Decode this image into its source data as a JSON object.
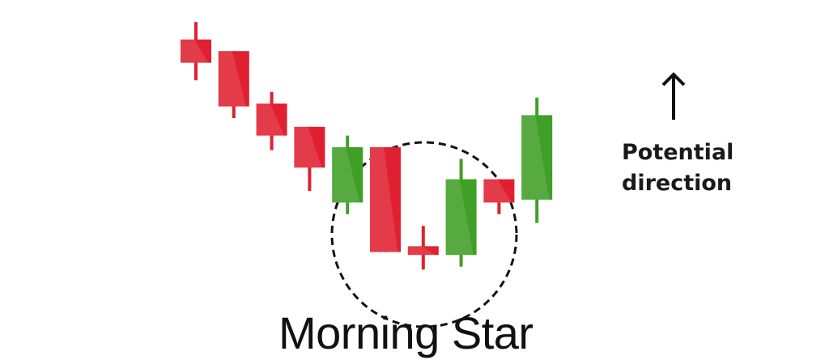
{
  "chart_data": {
    "type": "candlestick",
    "title": "Morning Star",
    "annotation": [
      "Potential",
      "direction"
    ],
    "annotation_icon": "up-arrow-icon",
    "highlight": "dashed-circle",
    "ylim": [
      0,
      100
    ],
    "candles": [
      {
        "open": 92,
        "close": 84,
        "high": 98,
        "low": 78
      },
      {
        "open": 88,
        "close": 69,
        "high": 88,
        "low": 65
      },
      {
        "open": 70,
        "close": 59,
        "high": 74,
        "low": 54
      },
      {
        "open": 62,
        "close": 48,
        "high": 62,
        "low": 40
      },
      {
        "open": 36,
        "close": 55,
        "high": 59,
        "low": 32
      },
      {
        "open": 55,
        "close": 19,
        "high": 55,
        "low": 19
      },
      {
        "open": 21,
        "close": 18,
        "high": 28,
        "low": 13
      },
      {
        "open": 18,
        "close": 44,
        "high": 51,
        "low": 14
      },
      {
        "open": 44,
        "close": 36,
        "high": 44,
        "low": 32
      },
      {
        "open": 37,
        "close": 66,
        "high": 72,
        "low": 29
      }
    ],
    "colors": {
      "bearish": "#e02030",
      "bullish": "#3f9f26",
      "circle": "#111111"
    }
  }
}
